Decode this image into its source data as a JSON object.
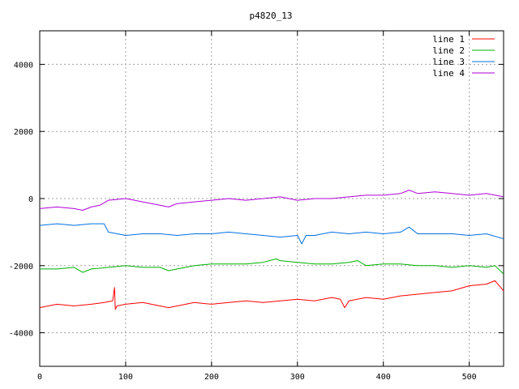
{
  "chart_data": {
    "type": "line",
    "title": "p4820_13",
    "xlabel": "",
    "ylabel": "",
    "xlim": [
      0,
      540
    ],
    "ylim": [
      -5000,
      5000
    ],
    "xticks": [
      0,
      100,
      200,
      300,
      400,
      500
    ],
    "yticks": [
      -4000,
      -2000,
      0,
      2000,
      4000
    ],
    "grid": true,
    "legend_position": "top-right",
    "series": [
      {
        "name": "line 1",
        "color": "#ff0000",
        "x": [
          0,
          20,
          40,
          60,
          75,
          85,
          87,
          88,
          90,
          100,
          120,
          140,
          150,
          160,
          180,
          200,
          220,
          240,
          260,
          280,
          300,
          320,
          340,
          350,
          355,
          360,
          380,
          400,
          420,
          440,
          460,
          480,
          500,
          520,
          530,
          540
        ],
        "y": [
          -3250,
          -3150,
          -3200,
          -3150,
          -3100,
          -3050,
          -2650,
          -3300,
          -3200,
          -3150,
          -3100,
          -3200,
          -3250,
          -3200,
          -3100,
          -3150,
          -3100,
          -3050,
          -3100,
          -3050,
          -3000,
          -3050,
          -2950,
          -3000,
          -3250,
          -3050,
          -2950,
          -3000,
          -2900,
          -2850,
          -2800,
          -2750,
          -2600,
          -2550,
          -2450,
          -2750
        ]
      },
      {
        "name": "line 2",
        "color": "#00b000",
        "x": [
          0,
          20,
          40,
          50,
          60,
          80,
          100,
          120,
          140,
          150,
          160,
          180,
          200,
          220,
          240,
          260,
          275,
          280,
          300,
          320,
          340,
          360,
          370,
          380,
          400,
          420,
          440,
          460,
          480,
          500,
          520,
          530,
          540
        ],
        "y": [
          -2100,
          -2100,
          -2050,
          -2200,
          -2100,
          -2050,
          -2000,
          -2050,
          -2050,
          -2150,
          -2100,
          -2000,
          -1950,
          -1950,
          -1950,
          -1900,
          -1800,
          -1850,
          -1900,
          -1950,
          -1950,
          -1900,
          -1850,
          -2000,
          -1950,
          -1950,
          -2000,
          -2000,
          -2050,
          -2000,
          -2050,
          -2000,
          -2250
        ]
      },
      {
        "name": "line 3",
        "color": "#0070e0",
        "x": [
          0,
          20,
          40,
          60,
          75,
          80,
          100,
          120,
          140,
          160,
          180,
          200,
          220,
          240,
          260,
          280,
          300,
          305,
          310,
          320,
          340,
          360,
          380,
          400,
          420,
          430,
          440,
          460,
          480,
          500,
          520,
          540
        ],
        "y": [
          -800,
          -750,
          -800,
          -750,
          -750,
          -1000,
          -1100,
          -1050,
          -1050,
          -1100,
          -1050,
          -1050,
          -1000,
          -1050,
          -1100,
          -1150,
          -1100,
          -1350,
          -1100,
          -1100,
          -1000,
          -1050,
          -1000,
          -1050,
          -1000,
          -850,
          -1050,
          -1050,
          -1050,
          -1100,
          -1050,
          -1200
        ]
      },
      {
        "name": "line 4",
        "color": "#b000d8",
        "x": [
          0,
          20,
          40,
          50,
          60,
          70,
          80,
          100,
          120,
          140,
          150,
          160,
          180,
          200,
          220,
          240,
          260,
          280,
          300,
          320,
          340,
          360,
          380,
          400,
          420,
          430,
          440,
          460,
          480,
          500,
          520,
          540
        ],
        "y": [
          -300,
          -250,
          -300,
          -350,
          -250,
          -200,
          -50,
          0,
          -100,
          -200,
          -250,
          -150,
          -100,
          -50,
          0,
          -50,
          0,
          50,
          -50,
          0,
          0,
          50,
          100,
          100,
          150,
          250,
          150,
          200,
          150,
          100,
          150,
          50
        ]
      }
    ]
  }
}
